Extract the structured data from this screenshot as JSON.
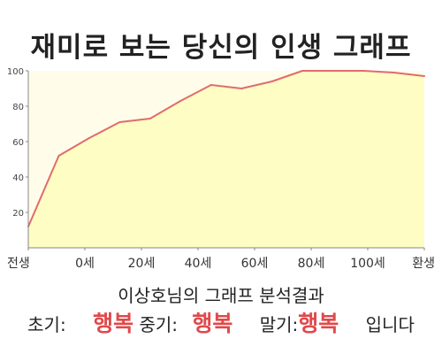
{
  "chart_data": {
    "type": "area",
    "title": "재미로 보는 당신의 인생 그래프",
    "x_tick_labels": [
      "전생",
      "0세",
      "20세",
      "40세",
      "60세",
      "80세",
      "100세",
      "환생"
    ],
    "y_ticks": [
      20,
      40,
      60,
      80,
      100
    ],
    "ylim": [
      0,
      100
    ],
    "grid": false,
    "series": [
      {
        "values": [
          12,
          52,
          62,
          71,
          73,
          83,
          92,
          90,
          94,
          100,
          100,
          100,
          99,
          97
        ]
      }
    ],
    "colors": {
      "fill": "#fdfdc4",
      "line": "#e06c6c",
      "axis": "#888888"
    }
  },
  "result": {
    "caption": "이상호님의 그래프 분석결과",
    "early_label": "초기:",
    "early_value": "행복",
    "middle_label": "중기:",
    "middle_value": "행복",
    "late_label": "말기:",
    "late_value": "행복",
    "ending": "입니다"
  },
  "colors": {
    "highlight": "#e0494b"
  }
}
